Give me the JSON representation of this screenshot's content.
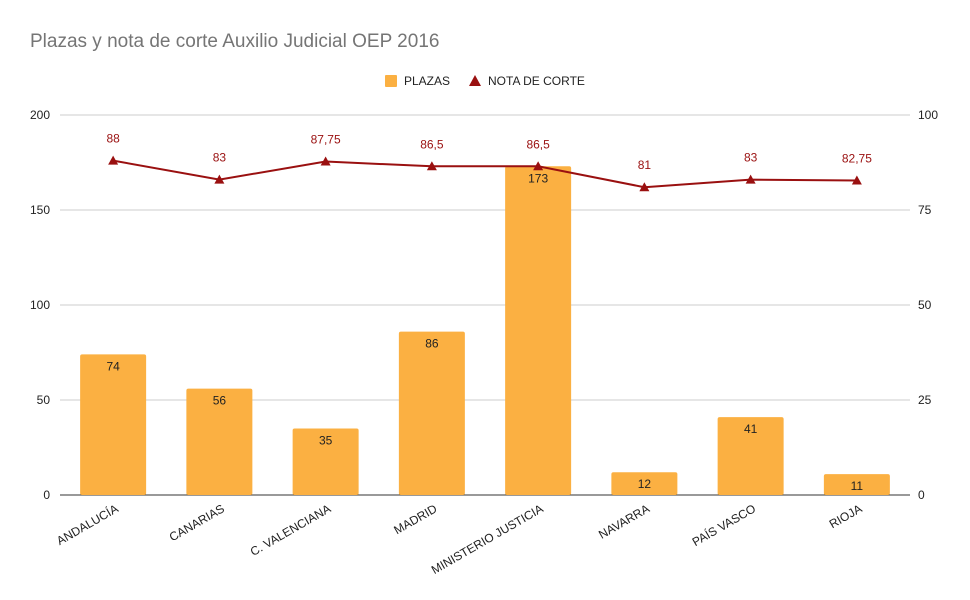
{
  "chart_data": {
    "type": "bar",
    "title": "Plazas y nota de corte Auxilio Judicial OEP 2016",
    "categories": [
      "ANDALUCÍA",
      "CANARIAS",
      "C. VALENCIANA",
      "MADRID",
      "MINISTERIO JUSTICIA",
      "NAVARRA",
      "PAÍS VASCO",
      "RIOJA"
    ],
    "series": [
      {
        "name": "PLAZAS",
        "type": "bar",
        "axis": "left",
        "color": "#FBB042",
        "values": [
          74,
          56,
          35,
          86,
          173,
          12,
          41,
          11
        ],
        "labels": [
          "74",
          "56",
          "35",
          "86",
          "173",
          "12",
          "41",
          "11"
        ]
      },
      {
        "name": "NOTA DE CORTE",
        "type": "line",
        "axis": "right",
        "color": "#9A1010",
        "marker": "triangle",
        "values": [
          88,
          83,
          87.75,
          86.5,
          86.5,
          81,
          83,
          82.75
        ],
        "labels": [
          "88",
          "83",
          "87,75",
          "86,5",
          "86,5",
          "81",
          "83",
          "82,75"
        ]
      }
    ],
    "ylim": [
      0,
      200
    ],
    "y_ticks": [
      "0",
      "50",
      "100",
      "150",
      "200"
    ],
    "y2lim": [
      0,
      100
    ],
    "y2_ticks": [
      "0",
      "25",
      "50",
      "75",
      "100"
    ],
    "grid": true,
    "legend_position": "top"
  }
}
